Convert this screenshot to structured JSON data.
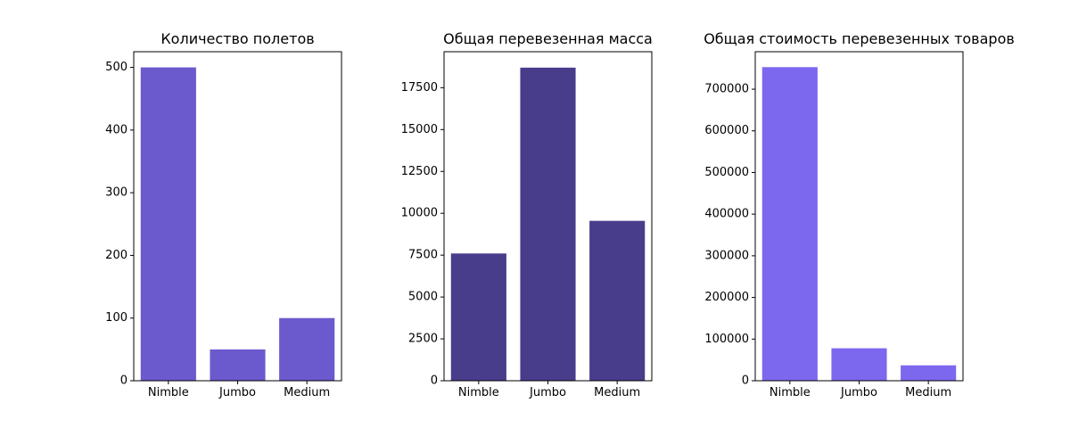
{
  "chart_data": [
    {
      "type": "bar",
      "title": "Количество полетов",
      "categories": [
        "Nimble",
        "Jumbo",
        "Medium"
      ],
      "values": [
        500,
        50,
        100
      ],
      "ylim": [
        0,
        525
      ],
      "yticks": [
        0,
        100,
        200,
        300,
        400,
        500
      ],
      "yticks_text": [
        "0",
        "100",
        "200",
        "300",
        "400",
        "500"
      ],
      "color": "#6a5acd",
      "grid": false
    },
    {
      "type": "bar",
      "title": "Общая перевезенная масса",
      "categories": [
        "Nimble",
        "Jumbo",
        "Medium"
      ],
      "values": [
        7600,
        18700,
        9550
      ],
      "ylim": [
        0,
        19650
      ],
      "yticks": [
        0,
        2500,
        5000,
        7500,
        10000,
        12500,
        15000,
        17500
      ],
      "yticks_text": [
        "0",
        "2500",
        "5000",
        "7500",
        "10000",
        "12500",
        "15000",
        "17500"
      ],
      "color": "#483d8b",
      "grid": false
    },
    {
      "type": "bar",
      "title": "Общая стоимость перевезенных товаров",
      "categories": [
        "Nimble",
        "Jumbo",
        "Medium"
      ],
      "values": [
        753000,
        78000,
        37000
      ],
      "ylim": [
        0,
        790000
      ],
      "yticks": [
        0,
        100000,
        200000,
        300000,
        400000,
        500000,
        600000,
        700000
      ],
      "yticks_text": [
        "0",
        "100000",
        "200000",
        "300000",
        "400000",
        "500000",
        "600000",
        "700000"
      ],
      "color": "#7b68ee",
      "grid": false
    }
  ]
}
